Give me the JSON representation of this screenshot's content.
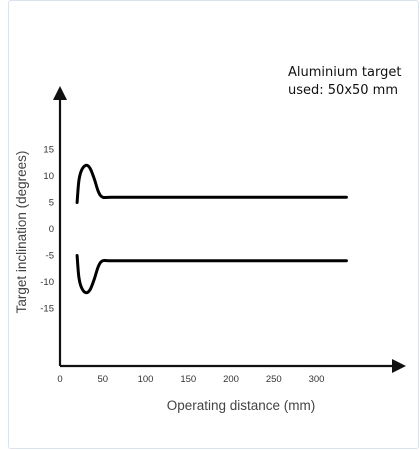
{
  "chart_data": {
    "type": "line",
    "title": "",
    "annotation": [
      "Aluminium target",
      "used: 50x50 mm"
    ],
    "xlabel": "Operating distance (mm)",
    "ylabel": "Target inclination (degrees)",
    "x_ticks": [
      "0",
      "50",
      "100",
      "150",
      "200",
      "250",
      "300"
    ],
    "x_tick_values": [
      0,
      50,
      100,
      150,
      200,
      250,
      300
    ],
    "y_ticks": [
      "15",
      "10",
      "5",
      "0",
      "-5",
      "-10",
      "-15"
    ],
    "y_tick_values": [
      15,
      10,
      5,
      0,
      -5,
      -10,
      -15
    ],
    "xlim": [
      0,
      340
    ],
    "ylim": [
      -20,
      20
    ],
    "grid": false,
    "line_color": "#000000",
    "series": [
      {
        "x": [
          20,
          22,
          25,
          30,
          35,
          40,
          45,
          50,
          60,
          100,
          150,
          200,
          250,
          300,
          335
        ],
        "y": [
          5,
          9,
          11,
          12,
          11.5,
          9.5,
          7,
          6,
          6,
          6,
          6,
          6,
          6,
          6,
          6
        ]
      },
      {
        "x": [
          20,
          22,
          25,
          30,
          35,
          40,
          45,
          50,
          60,
          100,
          150,
          200,
          250,
          300,
          335
        ],
        "y": [
          -5,
          -9,
          -11,
          -12,
          -11.5,
          -9.5,
          -7,
          -6,
          -6,
          -6,
          -6,
          -6,
          -6,
          -6,
          -6
        ]
      }
    ]
  }
}
